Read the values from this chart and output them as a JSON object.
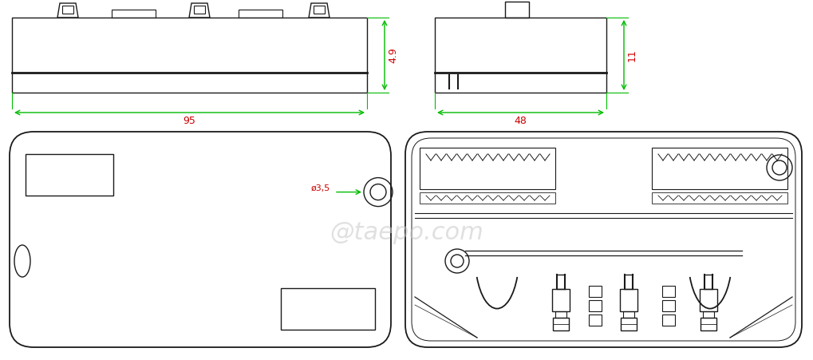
{
  "bg_color": "#ffffff",
  "line_color": "#1a1a1a",
  "dim_color": "#00bb00",
  "text_color_red": "#cc0000",
  "watermark": "@taepo.com",
  "figw": 10.2,
  "figh": 4.51,
  "dpi": 100
}
